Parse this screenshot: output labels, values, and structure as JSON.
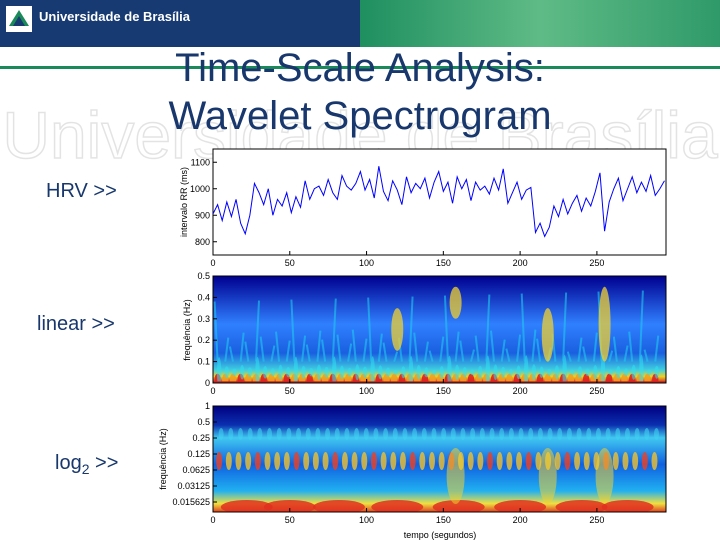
{
  "header": {
    "institution": "Universidade de Brasília"
  },
  "slide": {
    "title_line1": "Time-Scale Analysis:",
    "title_line2": "Wavelet Spectrogram",
    "watermark": "Universidade de Brasília"
  },
  "labels": {
    "hrv": "HRV >>",
    "linear": "linear >>",
    "log_base": "log",
    "log_sub": "2",
    "log_suffix": " >>"
  },
  "colors": {
    "header_blue": "#173a73",
    "header_green": "#3aa873",
    "title": "#17376d",
    "signal": "#0000ff"
  },
  "chart_data": [
    {
      "type": "line",
      "ylabel": "intervalo RR (ms)",
      "xlim": [
        0,
        295
      ],
      "ylim": [
        750,
        1150
      ],
      "xticks": [
        0,
        50,
        100,
        150,
        200,
        250
      ],
      "yticks": [
        800,
        900,
        1000,
        1100
      ],
      "grid": false,
      "series": [
        {
          "x": [
            0,
            3,
            6,
            9,
            12,
            15,
            18,
            21,
            24,
            27,
            30,
            33,
            36,
            39,
            42,
            45,
            48,
            51,
            54,
            57,
            60,
            63,
            66,
            69,
            72,
            75,
            78,
            81,
            84,
            87,
            90,
            93,
            96,
            99,
            102,
            105,
            108,
            111,
            114,
            117,
            120,
            123,
            126,
            129,
            132,
            135,
            138,
            141,
            144,
            147,
            150,
            153,
            156,
            159,
            162,
            165,
            168,
            171,
            174,
            177,
            180,
            183,
            186,
            189,
            192,
            195,
            198,
            201,
            204,
            207,
            210,
            213,
            216,
            219,
            222,
            225,
            228,
            231,
            234,
            237,
            240,
            243,
            246,
            249,
            252,
            255,
            258,
            261,
            264,
            267,
            270,
            273,
            276,
            279,
            282,
            285,
            288,
            291,
            294
          ],
          "y": [
            905,
            940,
            880,
            950,
            895,
            960,
            870,
            830,
            900,
            1020,
            985,
            940,
            1000,
            900,
            960,
            935,
            985,
            910,
            970,
            930,
            1030,
            960,
            1000,
            1010,
            975,
            1035,
            985,
            960,
            1050,
            1010,
            995,
            1020,
            1065,
            995,
            1035,
            965,
            1085,
            990,
            955,
            1030,
            995,
            940,
            1045,
            985,
            1020,
            1000,
            1040,
            965,
            1025,
            1065,
            990,
            1025,
            945,
            1045,
            1000,
            1035,
            955,
            1025,
            995,
            1010,
            980,
            1040,
            995,
            1075,
            945,
            985,
            1025,
            960,
            995,
            1005,
            835,
            870,
            820,
            855,
            935,
            895,
            960,
            905,
            945,
            975,
            915,
            965,
            935,
            990,
            1060,
            840,
            950,
            1000,
            1040,
            955,
            1000,
            1045,
            985,
            1025,
            990,
            1050,
            975,
            1000,
            1030
          ]
        }
      ]
    },
    {
      "type": "heatmap",
      "ylabel": "frequência (Hz)",
      "xlim": [
        0,
        295
      ],
      "ylim": [
        0,
        0.5
      ],
      "xticks": [
        0,
        50,
        100,
        150,
        200,
        250
      ],
      "yticks": [
        0,
        0.1,
        0.2,
        0.3,
        0.4,
        0.5
      ],
      "colormap": "jet"
    },
    {
      "type": "heatmap",
      "xlabel": "tempo (segundos)",
      "ylabel": "frequência (Hz)",
      "y_scale": "log2",
      "xlim": [
        0,
        295
      ],
      "xticks": [
        0,
        50,
        100,
        150,
        200,
        250
      ],
      "ytick_labels": [
        "1",
        "0.5",
        "0.25",
        "0.125",
        "0.0625",
        "0.03125",
        "0.015625"
      ],
      "colormap": "jet"
    }
  ],
  "axis_text": {
    "p1_ylabel": "intervalo RR (ms)",
    "p2_ylabel": "frequência (Hz)",
    "p3_ylabel": "frequência (Hz)",
    "p3_xlabel": "tempo (segundos)"
  }
}
